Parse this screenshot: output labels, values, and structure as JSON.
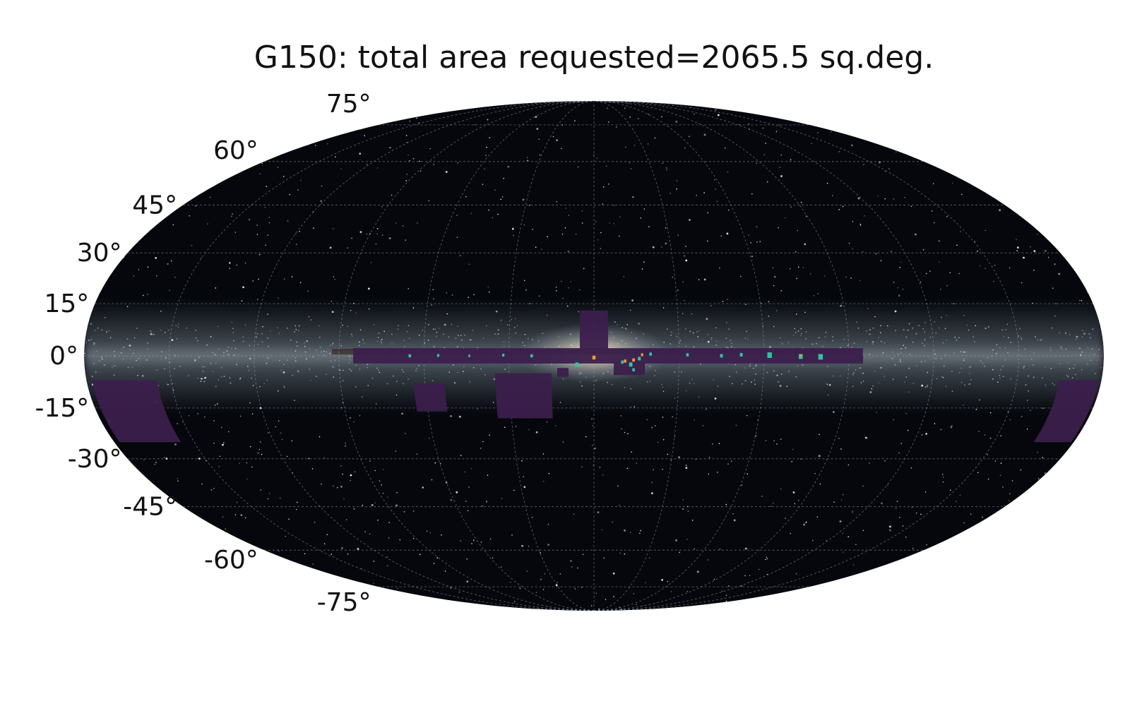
{
  "title": "G150: total area requested=2065.5 sq.deg.",
  "projection": "mollweide",
  "graticule": {
    "latitude_step_deg": 15,
    "longitude_step_deg": 30
  },
  "latitude_labels": [
    {
      "lat": 75,
      "text": "75°"
    },
    {
      "lat": 60,
      "text": "60°"
    },
    {
      "lat": 45,
      "text": "45°"
    },
    {
      "lat": 30,
      "text": "30°"
    },
    {
      "lat": 15,
      "text": "15°"
    },
    {
      "lat": 0,
      "text": "0°"
    },
    {
      "lat": -15,
      "text": "-15°"
    },
    {
      "lat": -30,
      "text": "-30°"
    },
    {
      "lat": -45,
      "text": "-45°"
    },
    {
      "lat": -60,
      "text": "-60°"
    },
    {
      "lat": -75,
      "text": "-75°"
    }
  ],
  "colors": {
    "sky_background": "#05070c",
    "milky_way_glow": "#b9c8d6",
    "bulge_core": "#f4e9d8",
    "coverage_low": "#3b1f4c",
    "coverage_mid": "#2ec4a0",
    "coverage_high": "#f0a028",
    "gridline": "#9aa3ad"
  },
  "coverage_regions": [
    {
      "name": "galactic-plane-strip",
      "lon_min": -95,
      "lon_max": 85,
      "lat_min": -2.2,
      "lat_max": 2.2,
      "level": "low"
    },
    {
      "name": "bulge-north-extension",
      "lon_min": -5,
      "lon_max": 5,
      "lat_min": 2,
      "lat_max": 13,
      "level": "low"
    },
    {
      "name": "south-block-1",
      "lon_min": 15,
      "lon_max": 35,
      "lat_min": -18,
      "lat_max": -5,
      "level": "low"
    },
    {
      "name": "south-block-2",
      "lon_min": 53,
      "lon_max": 64,
      "lat_min": -16,
      "lat_max": -8,
      "level": "low"
    },
    {
      "name": "bulge-south-patch",
      "lon_min": -18,
      "lon_max": -7,
      "lat_min": -5.5,
      "lat_max": -2,
      "level": "low"
    },
    {
      "name": "south-small-patch",
      "lon_min": 9,
      "lon_max": 13,
      "lat_min": -6,
      "lat_max": -3.5,
      "level": "low"
    },
    {
      "name": "west-edge-block",
      "lon_min": 155,
      "lon_max": 178,
      "lat_min": -25,
      "lat_max": -7,
      "level": "low"
    },
    {
      "name": "east-edge-block",
      "lon_min": -179,
      "lon_max": -165,
      "lat_min": -25,
      "lat_max": -7,
      "level": "low"
    }
  ],
  "coverage_patches": [
    {
      "lon": -80,
      "lat": -0.3,
      "size": 1.6,
      "level": "mid"
    },
    {
      "lon": -73,
      "lat": -0.2,
      "size": 1.4,
      "level": "mid"
    },
    {
      "lon": -62,
      "lat": 0.2,
      "size": 1.6,
      "level": "mid"
    },
    {
      "lon": -52,
      "lat": 0.3,
      "size": 1.0,
      "level": "mid"
    },
    {
      "lon": -45,
      "lat": 0.0,
      "size": 1.0,
      "level": "mid"
    },
    {
      "lon": -33,
      "lat": 0.3,
      "size": 0.9,
      "level": "mid"
    },
    {
      "lon": -20,
      "lat": 0.5,
      "size": 0.9,
      "level": "mid"
    },
    {
      "lon": -16,
      "lat": -0.8,
      "size": 1.0,
      "level": "mid"
    },
    {
      "lon": -13,
      "lat": -2.5,
      "size": 1.2,
      "level": "mid"
    },
    {
      "lon": -14,
      "lat": -4.0,
      "size": 0.9,
      "level": "mid"
    },
    {
      "lon": -10,
      "lat": -1.8,
      "size": 0.9,
      "level": "mid"
    },
    {
      "lon": 6,
      "lat": -2.5,
      "size": 1.2,
      "level": "mid"
    },
    {
      "lon": 22,
      "lat": 0.0,
      "size": 0.9,
      "level": "mid"
    },
    {
      "lon": 32,
      "lat": 0.2,
      "size": 0.8,
      "level": "mid"
    },
    {
      "lon": 44,
      "lat": 0.0,
      "size": 0.7,
      "level": "mid"
    },
    {
      "lon": 55,
      "lat": 0.1,
      "size": 0.8,
      "level": "mid"
    },
    {
      "lon": 65,
      "lat": 0.0,
      "size": 0.9,
      "level": "mid"
    },
    {
      "lon": -73,
      "lat": 0.1,
      "size": 0.6,
      "level": "high"
    },
    {
      "lon": -17,
      "lat": 0.3,
      "size": 0.8,
      "level": "high"
    },
    {
      "lon": -14,
      "lat": -1.2,
      "size": 0.9,
      "level": "high"
    },
    {
      "lon": -11,
      "lat": -1.5,
      "size": 0.9,
      "level": "high"
    },
    {
      "lon": 0,
      "lat": -0.5,
      "size": 1.1,
      "level": "high"
    }
  ]
}
